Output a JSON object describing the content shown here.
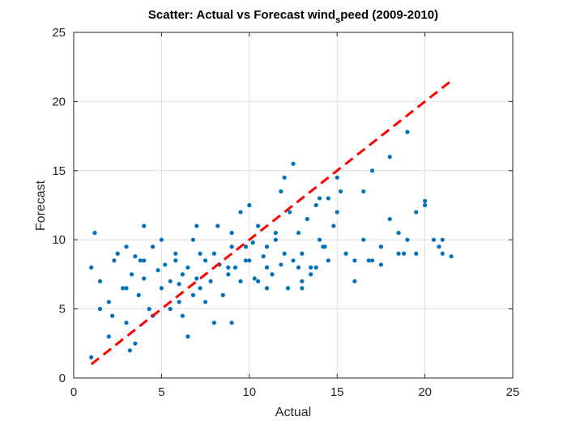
{
  "chart_data": {
    "type": "scatter",
    "title_parts": {
      "before": "Scatter: Actual vs Forecast wind",
      "subscript": "s",
      "after": "peed (2009-2010)"
    },
    "xlabel": "Actual",
    "ylabel": "Forecast",
    "xlim": [
      0,
      25
    ],
    "ylim": [
      0,
      25
    ],
    "xticks": [
      "0",
      "5",
      "10",
      "15",
      "20",
      "25"
    ],
    "yticks": [
      "0",
      "5",
      "10",
      "15",
      "20",
      "25"
    ],
    "grid": true,
    "colors": {
      "points": "#0072BD",
      "reference_line": "#FF0000",
      "grid": "#DFDFDF",
      "axes": "#262626"
    },
    "reference_line": {
      "style": "dashed",
      "x": [
        1,
        21.5
      ],
      "y": [
        1,
        21.5
      ]
    },
    "series": [
      {
        "x": [
          1.0,
          1.0,
          1.2,
          1.5,
          2.0,
          2.3,
          2.5,
          2.8,
          3.0,
          3.2,
          3.3,
          3.5,
          3.7,
          4.0,
          4.3,
          4.5,
          4.8,
          5.0,
          5.2,
          5.5,
          5.8,
          6.0,
          6.2,
          6.5,
          6.8,
          7.0,
          7.2,
          7.5,
          7.8,
          8.0,
          8.3,
          8.5,
          8.8,
          9.0,
          9.2,
          9.5,
          9.8,
          10.0,
          10.3,
          10.5,
          10.8,
          11.0,
          11.3,
          11.5,
          11.8,
          12.0,
          12.3,
          12.5,
          12.8,
          13.0,
          13.3,
          13.5,
          13.8,
          14.0,
          14.3,
          14.5,
          14.8,
          15.0,
          15.5,
          16.0,
          16.5,
          17.0,
          17.5,
          18.0,
          18.5,
          19.0,
          19.5,
          20.0,
          20.5,
          21.0,
          21.5,
          2.0,
          3.0,
          4.0,
          6.0,
          7.0,
          9.0,
          10.0,
          11.0,
          12.0,
          13.0,
          14.0,
          8.0,
          5.0,
          3.5,
          6.5,
          9.5,
          11.5,
          12.5,
          13.5,
          15.0,
          16.0,
          17.0,
          18.0,
          19.0,
          20.0,
          21.0,
          1.5,
          2.5,
          4.5,
          7.5,
          10.5,
          12.2,
          14.5,
          6.8,
          8.8,
          5.5,
          3.0,
          4.0,
          9.0,
          11.0,
          13.0,
          16.5,
          18.5,
          20.8,
          7.2,
          10.2,
          12.8,
          15.2,
          17.5,
          19.5,
          2.2,
          6.2,
          8.2,
          11.8,
          14.2,
          5.8,
          3.8,
          9.8,
          13.8,
          16.8,
          18.8
        ],
        "y": [
          1.5,
          8.0,
          10.5,
          7.0,
          5.5,
          8.5,
          9.0,
          6.5,
          4.0,
          2.0,
          7.5,
          8.8,
          6.0,
          7.2,
          5.0,
          9.5,
          7.8,
          6.5,
          8.2,
          7.0,
          9.0,
          6.8,
          7.5,
          8.0,
          10.0,
          7.2,
          6.5,
          8.5,
          7.0,
          9.0,
          8.2,
          6.0,
          7.5,
          10.5,
          8.0,
          7.0,
          9.5,
          8.5,
          7.2,
          11.0,
          8.8,
          9.5,
          7.5,
          10.0,
          8.2,
          9.0,
          12.0,
          8.5,
          10.5,
          9.0,
          11.5,
          8.0,
          12.5,
          10.0,
          9.5,
          13.0,
          11.0,
          14.5,
          9.0,
          8.5,
          10.0,
          15.0,
          9.5,
          16.0,
          10.5,
          17.8,
          12.0,
          12.8,
          10.0,
          9.0,
          8.8,
          3.0,
          9.5,
          11.0,
          5.5,
          11.0,
          4.0,
          12.5,
          6.5,
          14.5,
          7.0,
          13.0,
          4.0,
          10.0,
          2.5,
          3.0,
          12.0,
          10.5,
          15.5,
          7.5,
          12.0,
          7.0,
          8.5,
          11.5,
          10.0,
          12.5,
          10.0,
          5.0,
          9.0,
          4.5,
          5.5,
          7.0,
          6.5,
          8.5,
          6.0,
          8.0,
          5.0,
          6.5,
          8.5,
          9.5,
          8.0,
          6.5,
          13.5,
          9.0,
          9.5,
          9.0,
          9.8,
          8.0,
          13.5,
          8.2,
          9.0,
          4.5,
          4.5,
          11.0,
          13.5,
          9.5,
          8.5,
          8.5,
          8.5,
          8.0,
          8.5,
          9.0
        ]
      }
    ]
  }
}
